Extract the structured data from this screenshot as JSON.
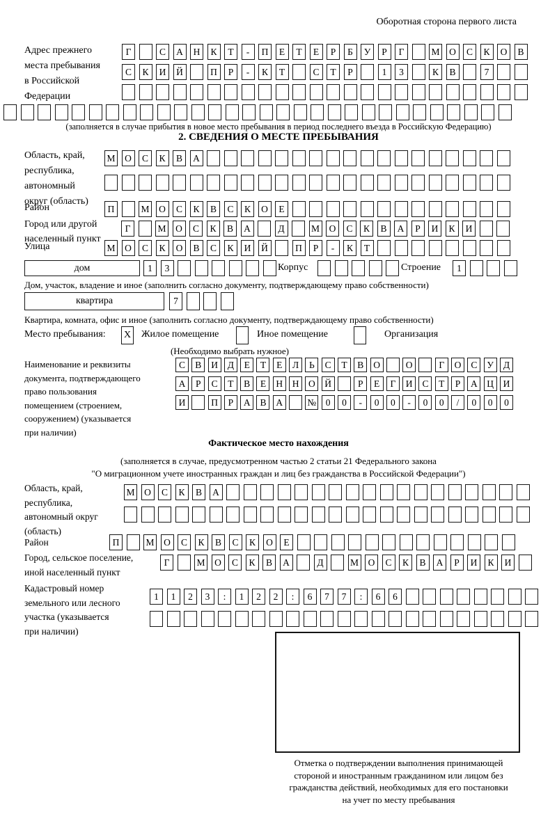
{
  "header": {
    "note": "Оборотная сторона первого листа"
  },
  "prev_address": {
    "label": [
      "Адрес прежнего",
      "места пребывания",
      "в Российской",
      "Федерации"
    ],
    "rows": [
      {
        "cells": 24,
        "chars": "Г САНКТ-ПЕТЕРБУРГ МОСКОВ"
      },
      {
        "cells": 24,
        "chars": "СКИЙ ПР-КТ СТР 13 КВ 7"
      },
      {
        "cells": 24,
        "chars": ""
      }
    ],
    "full_row": {
      "cells": 30,
      "chars": ""
    },
    "caption": "(заполняется в случае прибытия в новое место пребывания в период последнего въезда в Российскую Федерацию)"
  },
  "section2": {
    "title": "2. СВЕДЕНИЯ О МЕСТЕ ПРЕБЫВАНИЯ",
    "oblast": {
      "label": [
        "Область, край,",
        "республика,",
        "автономный",
        "округ (область)"
      ],
      "rows": [
        {
          "cells": 24,
          "chars": "МОСКВА"
        },
        {
          "cells": 24,
          "chars": ""
        }
      ]
    },
    "rayon": {
      "label": "Район",
      "row": {
        "cells": 24,
        "chars": "П МОСКВСКОЕ"
      }
    },
    "gorod": {
      "label": [
        "Город или другой",
        "населенный пункт"
      ],
      "row": {
        "cells": 23,
        "chars": "Г МОСКВА Д МОСКВАРИКИ"
      }
    },
    "ulitsa": {
      "label": "Улица",
      "row": {
        "cells": 24,
        "chars": "МОСКОВСКИЙ ПР-КТ"
      }
    },
    "dom": {
      "box_label": "дом",
      "house": {
        "cells": 8,
        "chars": "13"
      },
      "korpus_label": "Корпус",
      "korpus": {
        "cells": 5,
        "chars": ""
      },
      "stroenie_label": "Строение",
      "stroenie": {
        "cells": 4,
        "chars": "1"
      }
    },
    "dom_caption": "Дом, участок, владение и иное (заполнить согласно документу, подтверждающему право собственности)",
    "kvartira": {
      "box_label": "квартира",
      "cells": {
        "cells": 4,
        "chars": "7"
      }
    },
    "kvartira_caption": "Квартира, комната, офис и иное (заполнить согласно документу, подтверждающему право собственности)",
    "mesto": {
      "label": "Место пребывания:",
      "options": [
        {
          "label": "Жилое помещение",
          "mark": "X"
        },
        {
          "label": "Иное помещение",
          "mark": ""
        },
        {
          "label": "Организация",
          "mark": ""
        }
      ],
      "caption": "(Необходимо выбрать нужное)"
    },
    "doc": {
      "label": [
        "Наименование и реквизиты",
        "документа, подтверждающего",
        "право пользования",
        "помещением (строением,",
        "сооружением) (указывается",
        "при наличии)"
      ],
      "rows": [
        {
          "cells": 21,
          "chars": "СВИДЕТЕЛЬСТВО О ГОСУД"
        },
        {
          "cells": 21,
          "chars": "АРСТВЕННОЙ РЕГИСТРАЦИ"
        },
        {
          "cells": 21,
          "chars": "И ПРАВА №00-00-00/000"
        }
      ]
    }
  },
  "fact": {
    "title": "Фактическое место нахождения",
    "caption_lines": [
      "(заполняется в случае, предусмотренном частью 2 статьи 21 Федерального закона",
      "\"О миграционном учете иностранных граждан и лиц без гражданства в Российской Федерации\")"
    ],
    "oblast": {
      "label": [
        "Область, край,",
        "республика,",
        "автономный округ",
        "(область)"
      ],
      "rows": [
        {
          "cells": 24,
          "chars": "МОСКВА"
        },
        {
          "cells": 24,
          "chars": ""
        }
      ]
    },
    "rayon": {
      "label": "Район",
      "row": {
        "cells": 24,
        "chars": "П МОСКВСКОЕ"
      }
    },
    "gorod": {
      "label": [
        "Город, сельское поселение,",
        "иной населенный пункт"
      ],
      "row": {
        "cells": 22,
        "chars": "Г МОСКВА Д МОСКВАРИКИ"
      }
    },
    "kadastr": {
      "label": [
        "Кадастровый номер",
        "земельного или лесного",
        "участка (указывается",
        "при наличии)"
      ],
      "rows": [
        {
          "cells": 23,
          "chars": "1123:122:677:66"
        },
        {
          "cells": 23,
          "chars": ""
        }
      ]
    },
    "stamp_caption": [
      "Отметка о подтверждении выполнения принимающей",
      "стороной и иностранным гражданином или лицом без",
      "гражданства действий, необходимых для его постановки",
      "на учет по месту пребывания"
    ]
  }
}
